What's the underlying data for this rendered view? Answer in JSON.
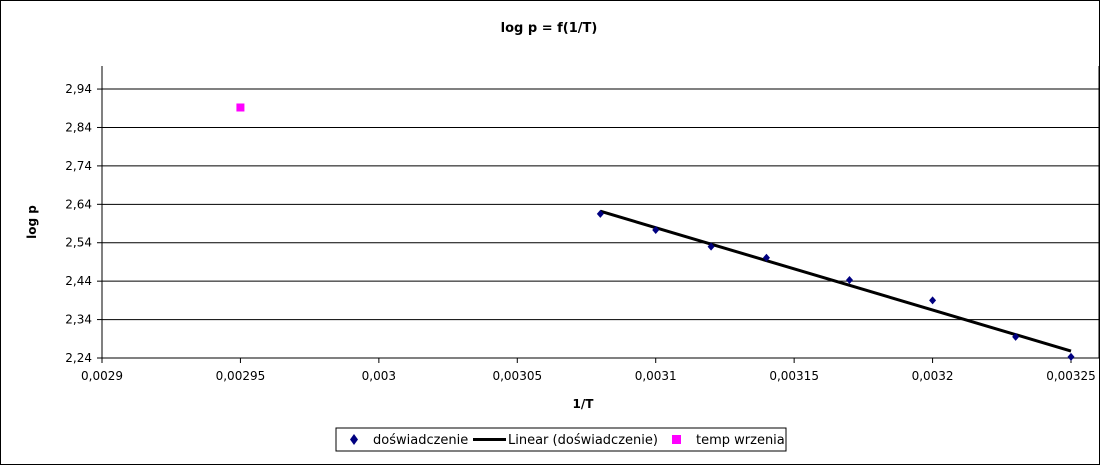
{
  "chart_data": {
    "type": "scatter",
    "title": "log p = f(1/T)",
    "xlabel": "1/T",
    "ylabel": "log p",
    "xlim": [
      0.0029,
      0.00325
    ],
    "ylim": [
      2.24,
      3.0
    ],
    "x_ticks": [
      0.0029,
      0.00295,
      0.003,
      0.00305,
      0.0031,
      0.00315,
      0.0032,
      0.00325
    ],
    "x_tick_labels": [
      "0,0029",
      "0,00295",
      "0,003",
      "0,00305",
      "0,0031",
      "0,00315",
      "0,0032",
      "0,00325"
    ],
    "y_ticks": [
      2.24,
      2.34,
      2.44,
      2.54,
      2.64,
      2.74,
      2.84,
      2.94
    ],
    "y_tick_labels": [
      "2,24",
      "2,34",
      "2,44",
      "2,54",
      "2,64",
      "2,74",
      "2,84",
      "2,94"
    ],
    "grid": "horizontal",
    "legend_position": "bottom",
    "series": [
      {
        "name": "doświadczenie",
        "kind": "points",
        "marker": "diamond",
        "color": "#000080",
        "x": [
          0.00308,
          0.0031,
          0.00312,
          0.00314,
          0.00317,
          0.0032,
          0.00323,
          0.00325
        ],
        "y": [
          2.615,
          2.573,
          2.53,
          2.501,
          2.443,
          2.39,
          2.295,
          2.243
        ]
      },
      {
        "name": "Linear (doświadczenie)",
        "kind": "trendline",
        "color": "#000000",
        "x": [
          0.00308,
          0.00325
        ],
        "y": [
          2.622,
          2.258
        ]
      },
      {
        "name": "temp wrzenia",
        "kind": "points",
        "marker": "square",
        "color": "#ff00ff",
        "x": [
          0.00295
        ],
        "y": [
          2.892
        ]
      }
    ]
  }
}
